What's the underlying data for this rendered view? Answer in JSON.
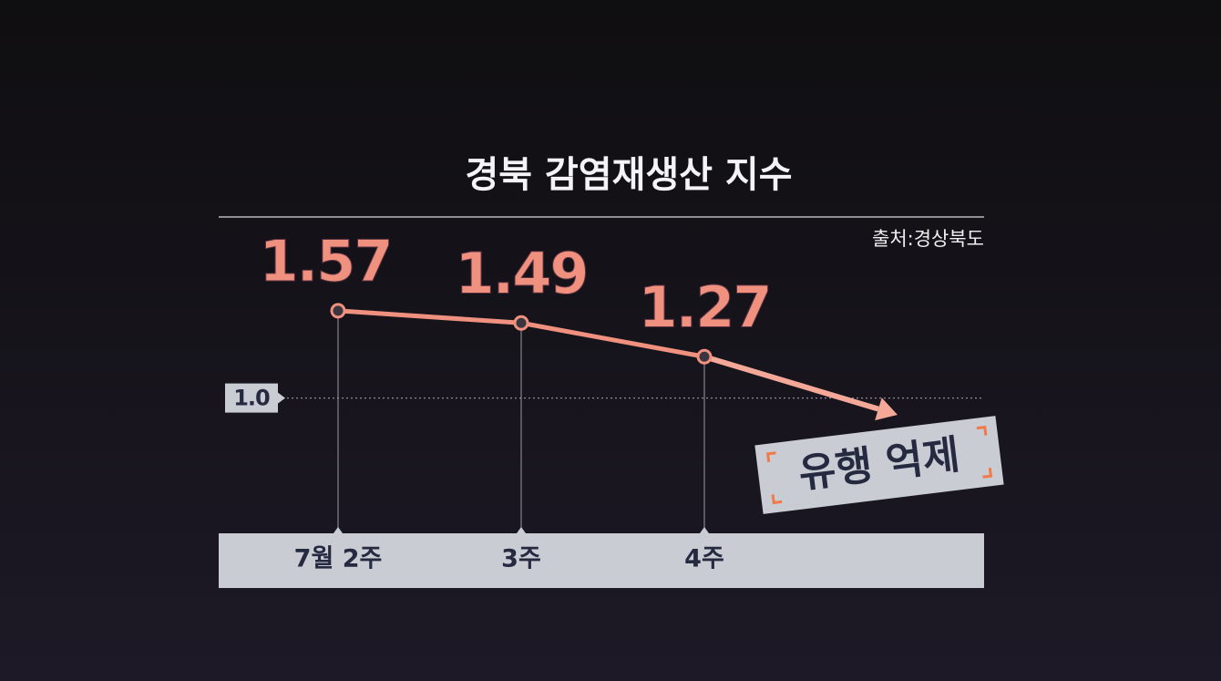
{
  "chart_data": {
    "type": "line",
    "title": "경북 감염재생산 지수",
    "source": "출처:경상북도",
    "categories": [
      "7월 2주",
      "3주",
      "4주"
    ],
    "values": [
      1.57,
      1.49,
      1.27
    ],
    "color": "#f0907e",
    "ylim": [
      0.7,
      1.7
    ],
    "reference_line": {
      "value": 1.0,
      "label": "1.0"
    },
    "annotation": "유행 억제"
  }
}
